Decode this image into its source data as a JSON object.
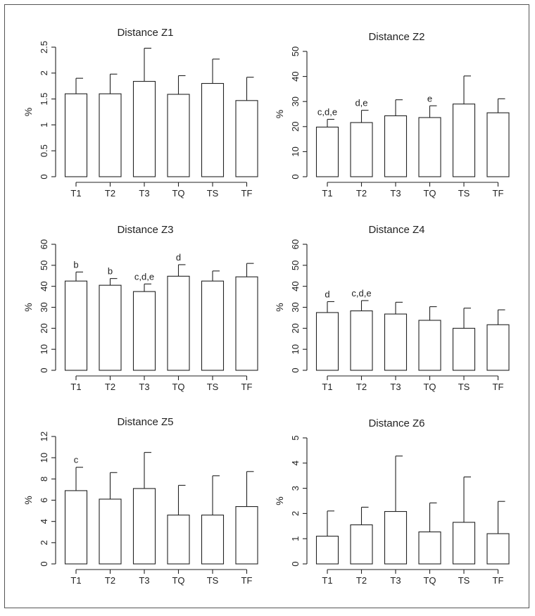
{
  "figure": {
    "name": "distance-zones-figure"
  },
  "colors": {
    "bar_fill": "#ffffff",
    "stroke": "#222222",
    "frame": "#555555"
  },
  "chart_data": [
    {
      "type": "bar",
      "title": "Distance Z1",
      "ylabel": "%",
      "xlabel": "",
      "categories": [
        "T1",
        "T2",
        "T3",
        "TQ",
        "TS",
        "TF"
      ],
      "values": [
        1.6,
        1.6,
        1.84,
        1.59,
        1.8,
        1.47
      ],
      "errors": [
        0.3,
        0.38,
        0.64,
        0.36,
        0.47,
        0.45
      ],
      "annotations": [
        "",
        "",
        "",
        "",
        "",
        ""
      ],
      "ylim": [
        0,
        2.5
      ],
      "yticks": [
        "0",
        "0.5",
        "1",
        "1.5",
        "2",
        "2.5"
      ],
      "ytick_values": [
        0,
        0.5,
        1,
        1.5,
        2,
        2.5
      ]
    },
    {
      "type": "bar",
      "title": "Distance Z2",
      "ylabel": "%",
      "xlabel": "",
      "categories": [
        "T1",
        "T2",
        "T3",
        "TQ",
        "TS",
        "TF"
      ],
      "values": [
        19.8,
        21.6,
        24.3,
        23.6,
        29.0,
        25.5
      ],
      "errors": [
        3.1,
        4.9,
        6.4,
        4.7,
        11.2,
        5.6
      ],
      "annotations": [
        "c,d,e",
        "d,e",
        "",
        "e",
        "",
        ""
      ],
      "ylim": [
        0,
        50
      ],
      "yticks": [
        "0",
        "10",
        "20",
        "30",
        "40",
        "50"
      ],
      "ytick_values": [
        0,
        10,
        20,
        30,
        40,
        50
      ]
    },
    {
      "type": "bar",
      "title": "Distance Z3",
      "ylabel": "%",
      "xlabel": "",
      "categories": [
        "T1",
        "T2",
        "T3",
        "TQ",
        "TS",
        "TF"
      ],
      "values": [
        42.5,
        40.5,
        37.5,
        44.8,
        42.5,
        44.5
      ],
      "errors": [
        4.3,
        3.2,
        3.6,
        5.5,
        4.8,
        6.4
      ],
      "annotations": [
        "b",
        "b",
        "c,d,e",
        "d",
        "",
        ""
      ],
      "ylim": [
        0,
        60
      ],
      "yticks": [
        "0",
        "10",
        "20",
        "30",
        "40",
        "50",
        "60"
      ],
      "ytick_values": [
        0,
        10,
        20,
        30,
        40,
        50,
        60
      ]
    },
    {
      "type": "bar",
      "title": "Distance Z4",
      "ylabel": "%",
      "xlabel": "",
      "categories": [
        "T1",
        "T2",
        "T3",
        "TQ",
        "TS",
        "TF"
      ],
      "values": [
        27.5,
        28.3,
        26.8,
        23.8,
        20.0,
        21.7
      ],
      "errors": [
        5.2,
        4.9,
        5.6,
        6.5,
        9.6,
        7.1
      ],
      "annotations": [
        "d",
        "c,d,e",
        "",
        "",
        "",
        ""
      ],
      "ylim": [
        0,
        60
      ],
      "yticks": [
        "0",
        "10",
        "20",
        "30",
        "40",
        "50",
        "60"
      ],
      "ytick_values": [
        0,
        10,
        20,
        30,
        40,
        50,
        60
      ]
    },
    {
      "type": "bar",
      "title": "Distance Z5",
      "ylabel": "%",
      "xlabel": "",
      "categories": [
        "T1",
        "T2",
        "T3",
        "TQ",
        "TS",
        "TF"
      ],
      "values": [
        6.9,
        6.1,
        7.1,
        4.6,
        4.6,
        5.4
      ],
      "errors": [
        2.2,
        2.5,
        3.4,
        2.8,
        3.7,
        3.3
      ],
      "annotations": [
        "c",
        "",
        "",
        "",
        "",
        ""
      ],
      "ylim": [
        0,
        12
      ],
      "yticks": [
        "0",
        "2",
        "4",
        "6",
        "8",
        "10",
        "12"
      ],
      "ytick_values": [
        0,
        2,
        4,
        6,
        8,
        10,
        12
      ]
    },
    {
      "type": "bar",
      "title": "Distance Z6",
      "ylabel": "%",
      "xlabel": "",
      "categories": [
        "T1",
        "T2",
        "T3",
        "TQ",
        "TS",
        "TF"
      ],
      "values": [
        1.1,
        1.55,
        2.08,
        1.27,
        1.65,
        1.2
      ],
      "errors": [
        1.0,
        0.7,
        2.2,
        1.15,
        1.8,
        1.28
      ],
      "annotations": [
        "",
        "",
        "",
        "",
        "",
        ""
      ],
      "ylim": [
        0,
        5
      ],
      "yticks": [
        "0",
        "1",
        "2",
        "3",
        "4",
        "5"
      ],
      "ytick_values": [
        0,
        1,
        2,
        3,
        4,
        5
      ]
    }
  ]
}
